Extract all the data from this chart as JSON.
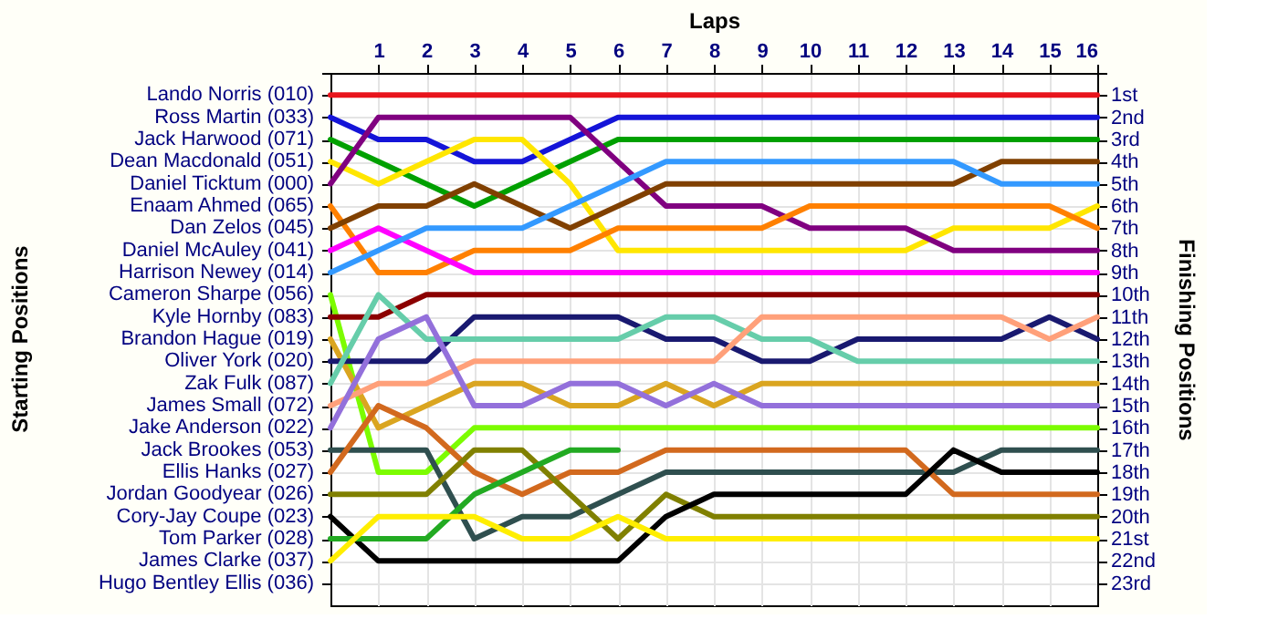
{
  "chart_data": {
    "type": "line",
    "xlabel": "Laps",
    "ylabel": "Finishing Positions",
    "x": [
      0,
      1,
      2,
      3,
      4,
      5,
      6,
      7,
      8,
      9,
      10,
      11,
      12,
      13,
      14,
      15,
      16
    ],
    "xlim": [
      0,
      16
    ],
    "xticks": [
      1,
      2,
      3,
      4,
      5,
      6,
      7,
      8,
      9,
      10,
      11,
      12,
      13,
      14,
      15,
      16
    ],
    "ylim": [
      24,
      0
    ],
    "yticks": [
      {
        "value": 0,
        "label": null
      },
      {
        "value": 1,
        "label": "1st"
      },
      {
        "value": 2,
        "label": "2nd"
      },
      {
        "value": 3,
        "label": "3rd"
      },
      {
        "value": 4,
        "label": "4th"
      },
      {
        "value": 5,
        "label": "5th"
      },
      {
        "value": 6,
        "label": "6th"
      },
      {
        "value": 7,
        "label": "7th"
      },
      {
        "value": 8,
        "label": "8th"
      },
      {
        "value": 9,
        "label": "9th"
      },
      {
        "value": 10,
        "label": "10th"
      },
      {
        "value": 11,
        "label": "11th"
      },
      {
        "value": 12,
        "label": "12th"
      },
      {
        "value": 13,
        "label": "13th"
      },
      {
        "value": 14,
        "label": "14th"
      },
      {
        "value": 15,
        "label": "15th"
      },
      {
        "value": 16,
        "label": "16th"
      },
      {
        "value": 17,
        "label": "17th"
      },
      {
        "value": 18,
        "label": "18th"
      },
      {
        "value": 19,
        "label": "19th"
      },
      {
        "value": 20,
        "label": "20th"
      },
      {
        "value": 21,
        "label": "21st"
      },
      {
        "value": 22,
        "label": "22nd"
      },
      {
        "value": 23,
        "label": "23rd"
      }
    ],
    "annotations": [
      "Starting Positions",
      "Lando Norris (010)",
      "Ross Martin (033)",
      "Jack Harwood (071)",
      "Dean Macdonald (051)",
      "Daniel Ticktum (000)",
      "Enaam Ahmed (065)",
      "Dan Zelos (045)",
      "Daniel McAuley (041)",
      "Harrison Newey (014)",
      "Cameron Sharpe (056)",
      "Kyle Hornby (083)",
      "Brandon Hague (019)",
      "Oliver York (020)",
      "Zak Fulk (087)",
      "James Small (072)",
      "Jake Anderson (022)",
      "Jack Brookes (053)",
      "Ellis Hanks (027)",
      "Jordan Goodyear (026)",
      "Cory-Jay Coupe (023)",
      "Tom Parker (028)",
      "James Clarke (037)",
      "Hugo Bentley Ellis (036)"
    ],
    "grid": true,
    "legend": false,
    "marker": "none",
    "line_style": "solid",
    "series": [
      {
        "color": "#e8141c",
        "values": [
          1,
          1,
          1,
          1,
          1,
          1,
          1,
          1,
          1,
          1,
          1,
          1,
          1,
          1,
          1,
          1,
          1
        ]
      },
      {
        "color": "#1414d8",
        "values": [
          2,
          3,
          3,
          4,
          4,
          3,
          2,
          2,
          2,
          2,
          2,
          2,
          2,
          2,
          2,
          2,
          2
        ]
      },
      {
        "color": "#00a000",
        "values": [
          3,
          4,
          5,
          6,
          5,
          4,
          3,
          3,
          3,
          3,
          3,
          3,
          3,
          3,
          3,
          3,
          3
        ]
      },
      {
        "color": "#ffe600",
        "values": [
          4,
          5,
          4,
          3,
          3,
          5,
          8,
          8,
          8,
          8,
          8,
          8,
          8,
          7,
          7,
          7,
          6
        ]
      },
      {
        "color": "#800080",
        "values": [
          5,
          2,
          2,
          2,
          2,
          2,
          4,
          6,
          6,
          6,
          7,
          7,
          7,
          8,
          8,
          8,
          8
        ]
      },
      {
        "color": "#ff8000",
        "values": [
          6,
          9,
          9,
          8,
          8,
          8,
          7,
          7,
          7,
          7,
          6,
          6,
          6,
          6,
          6,
          6,
          7
        ]
      },
      {
        "color": "#804000",
        "values": [
          7,
          6,
          6,
          5,
          6,
          7,
          6,
          5,
          5,
          5,
          5,
          5,
          5,
          5,
          4,
          4,
          4
        ]
      },
      {
        "color": "#ff00ff",
        "values": [
          8,
          7,
          8,
          9,
          9,
          9,
          9,
          9,
          9,
          9,
          9,
          9,
          9,
          9,
          9,
          9,
          9
        ]
      },
      {
        "color": "#3399ff",
        "values": [
          9,
          8,
          7,
          7,
          7,
          6,
          5,
          4,
          4,
          4,
          4,
          4,
          4,
          4,
          5,
          5,
          5
        ]
      },
      {
        "color": "#7cfc00",
        "values": [
          10,
          18,
          18,
          16,
          16,
          16,
          16,
          16,
          16,
          16,
          16,
          16,
          16,
          16,
          16,
          16,
          16
        ]
      },
      {
        "color": "#8b0000",
        "values": [
          11,
          11,
          10,
          10,
          10,
          10,
          10,
          10,
          10,
          10,
          10,
          10,
          10,
          10,
          10,
          10,
          10
        ]
      },
      {
        "color": "#daa520",
        "values": [
          12,
          16,
          15,
          14,
          14,
          15,
          15,
          14,
          15,
          14,
          14,
          14,
          14,
          14,
          14,
          14,
          14
        ]
      },
      {
        "color": "#191970",
        "values": [
          13,
          13,
          13,
          11,
          11,
          11,
          11,
          12,
          12,
          13,
          13,
          12,
          12,
          12,
          12,
          11,
          12
        ]
      },
      {
        "color": "#66cdaa",
        "values": [
          14,
          10,
          12,
          12,
          12,
          12,
          12,
          11,
          11,
          12,
          12,
          13,
          13,
          13,
          13,
          13,
          13
        ]
      },
      {
        "color": "#ffa07a",
        "values": [
          15,
          14,
          14,
          13,
          13,
          13,
          13,
          13,
          13,
          11,
          11,
          11,
          11,
          11,
          11,
          12,
          11
        ]
      },
      {
        "color": "#9370db",
        "values": [
          16,
          12,
          11,
          15,
          15,
          14,
          14,
          15,
          14,
          15,
          15,
          15,
          15,
          15,
          15,
          15,
          15
        ]
      },
      {
        "color": "#2f4f4f",
        "values": [
          17,
          17,
          17,
          21,
          20,
          20,
          19,
          18,
          18,
          18,
          18,
          18,
          18,
          18,
          17,
          17,
          17
        ]
      },
      {
        "color": "#d2691e",
        "values": [
          18,
          15,
          16,
          18,
          19,
          18,
          18,
          17,
          17,
          17,
          17,
          17,
          17,
          19,
          19,
          19,
          19
        ]
      },
      {
        "color": "#808000",
        "values": [
          19,
          19,
          19,
          17,
          17,
          19,
          21,
          19,
          20,
          20,
          20,
          20,
          20,
          20,
          20,
          20,
          20
        ]
      },
      {
        "color": "#000000",
        "values": [
          20,
          22,
          22,
          22,
          22,
          22,
          22,
          20,
          19,
          19,
          19,
          19,
          19,
          17,
          18,
          18,
          18
        ]
      },
      {
        "color": "#22aa22",
        "values": [
          21,
          21,
          21,
          19,
          18,
          17,
          17,
          null,
          null,
          null,
          null,
          null,
          null,
          null,
          null,
          null,
          null
        ]
      },
      {
        "color": "#ffee00",
        "values": [
          22,
          20,
          20,
          20,
          21,
          21,
          20,
          21,
          21,
          21,
          21,
          21,
          21,
          21,
          21,
          21,
          21
        ]
      }
    ]
  }
}
